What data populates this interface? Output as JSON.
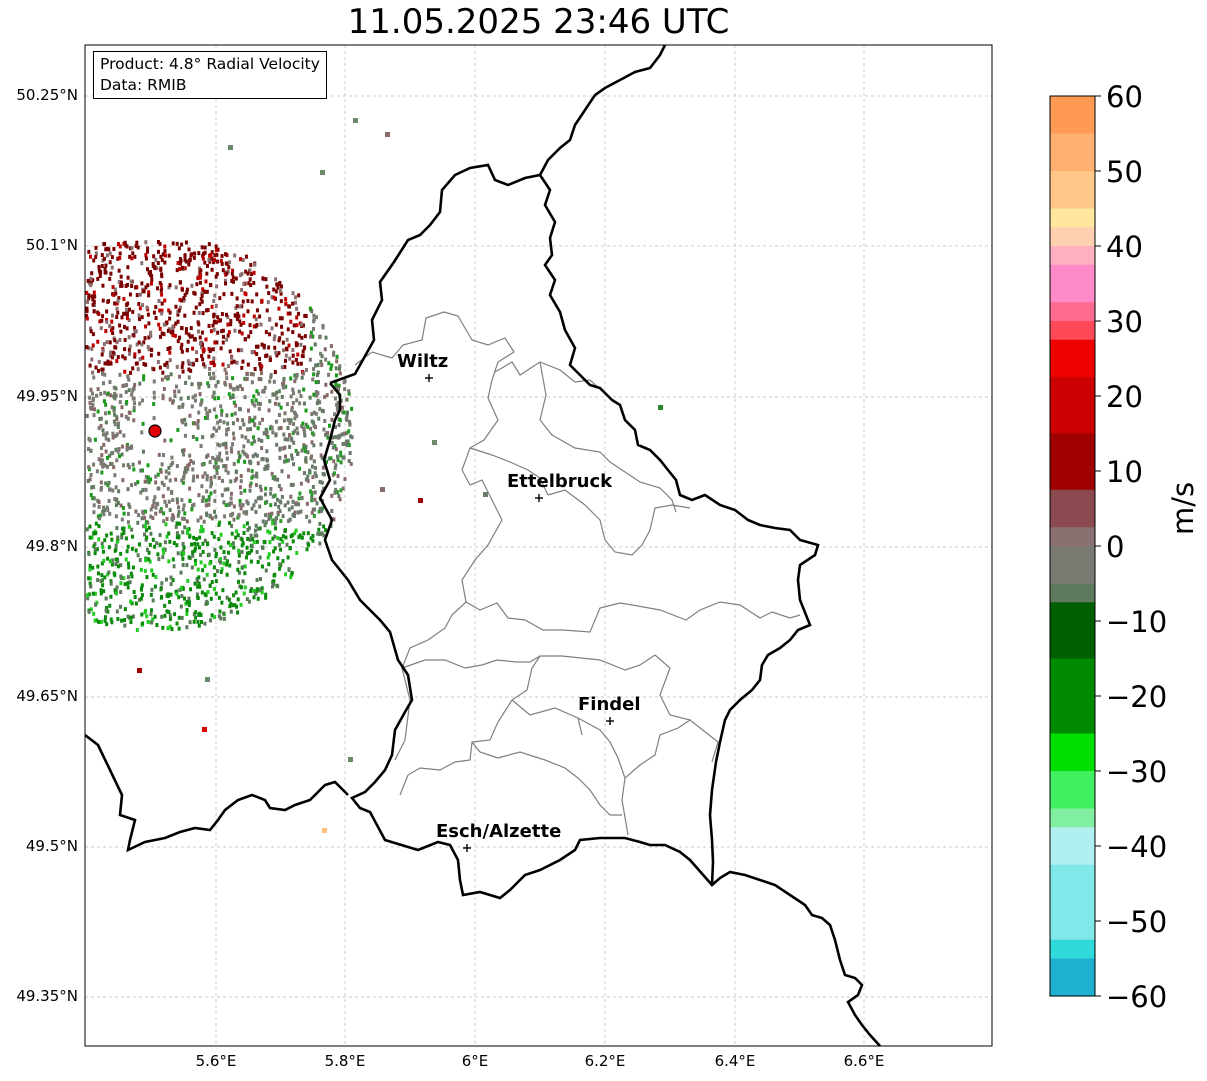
{
  "title": "11.05.2025 23:46 UTC",
  "info": {
    "product": "Product: 4.8° Radial Velocity",
    "source": "Data: RMIB"
  },
  "axes": {
    "lat_ticks": [
      "50.25°N",
      "50.1°N",
      "49.95°N",
      "49.8°N",
      "49.65°N",
      "49.5°N",
      "49.35°N"
    ],
    "lon_ticks": [
      "5.6°E",
      "5.8°E",
      "6°E",
      "6.2°E",
      "6.4°E",
      "6.6°E"
    ]
  },
  "cities": [
    {
      "name": "Wiltz"
    },
    {
      "name": "Ettelbruck"
    },
    {
      "name": "Findel"
    },
    {
      "name": "Esch/Alzette"
    }
  ],
  "colorbar": {
    "label": "m/s",
    "ticks": [
      "60",
      "50",
      "40",
      "30",
      "20",
      "10",
      "0",
      "−10",
      "−20",
      "−30",
      "−40",
      "−50",
      "−60"
    ],
    "colors": {
      "outbound_strong": "#ff9a55",
      "outbound_pink": "#ff8ac8",
      "outbound_red": "#ee0000",
      "outbound_dark": "#6b0000",
      "neutral": "#7a6e6e",
      "inbound_dark": "#005f00",
      "inbound_green": "#00e000",
      "inbound_cyan": "#30dada",
      "inbound_blue": "#1f7ac4"
    }
  },
  "radar_site_color": "#e00000"
}
